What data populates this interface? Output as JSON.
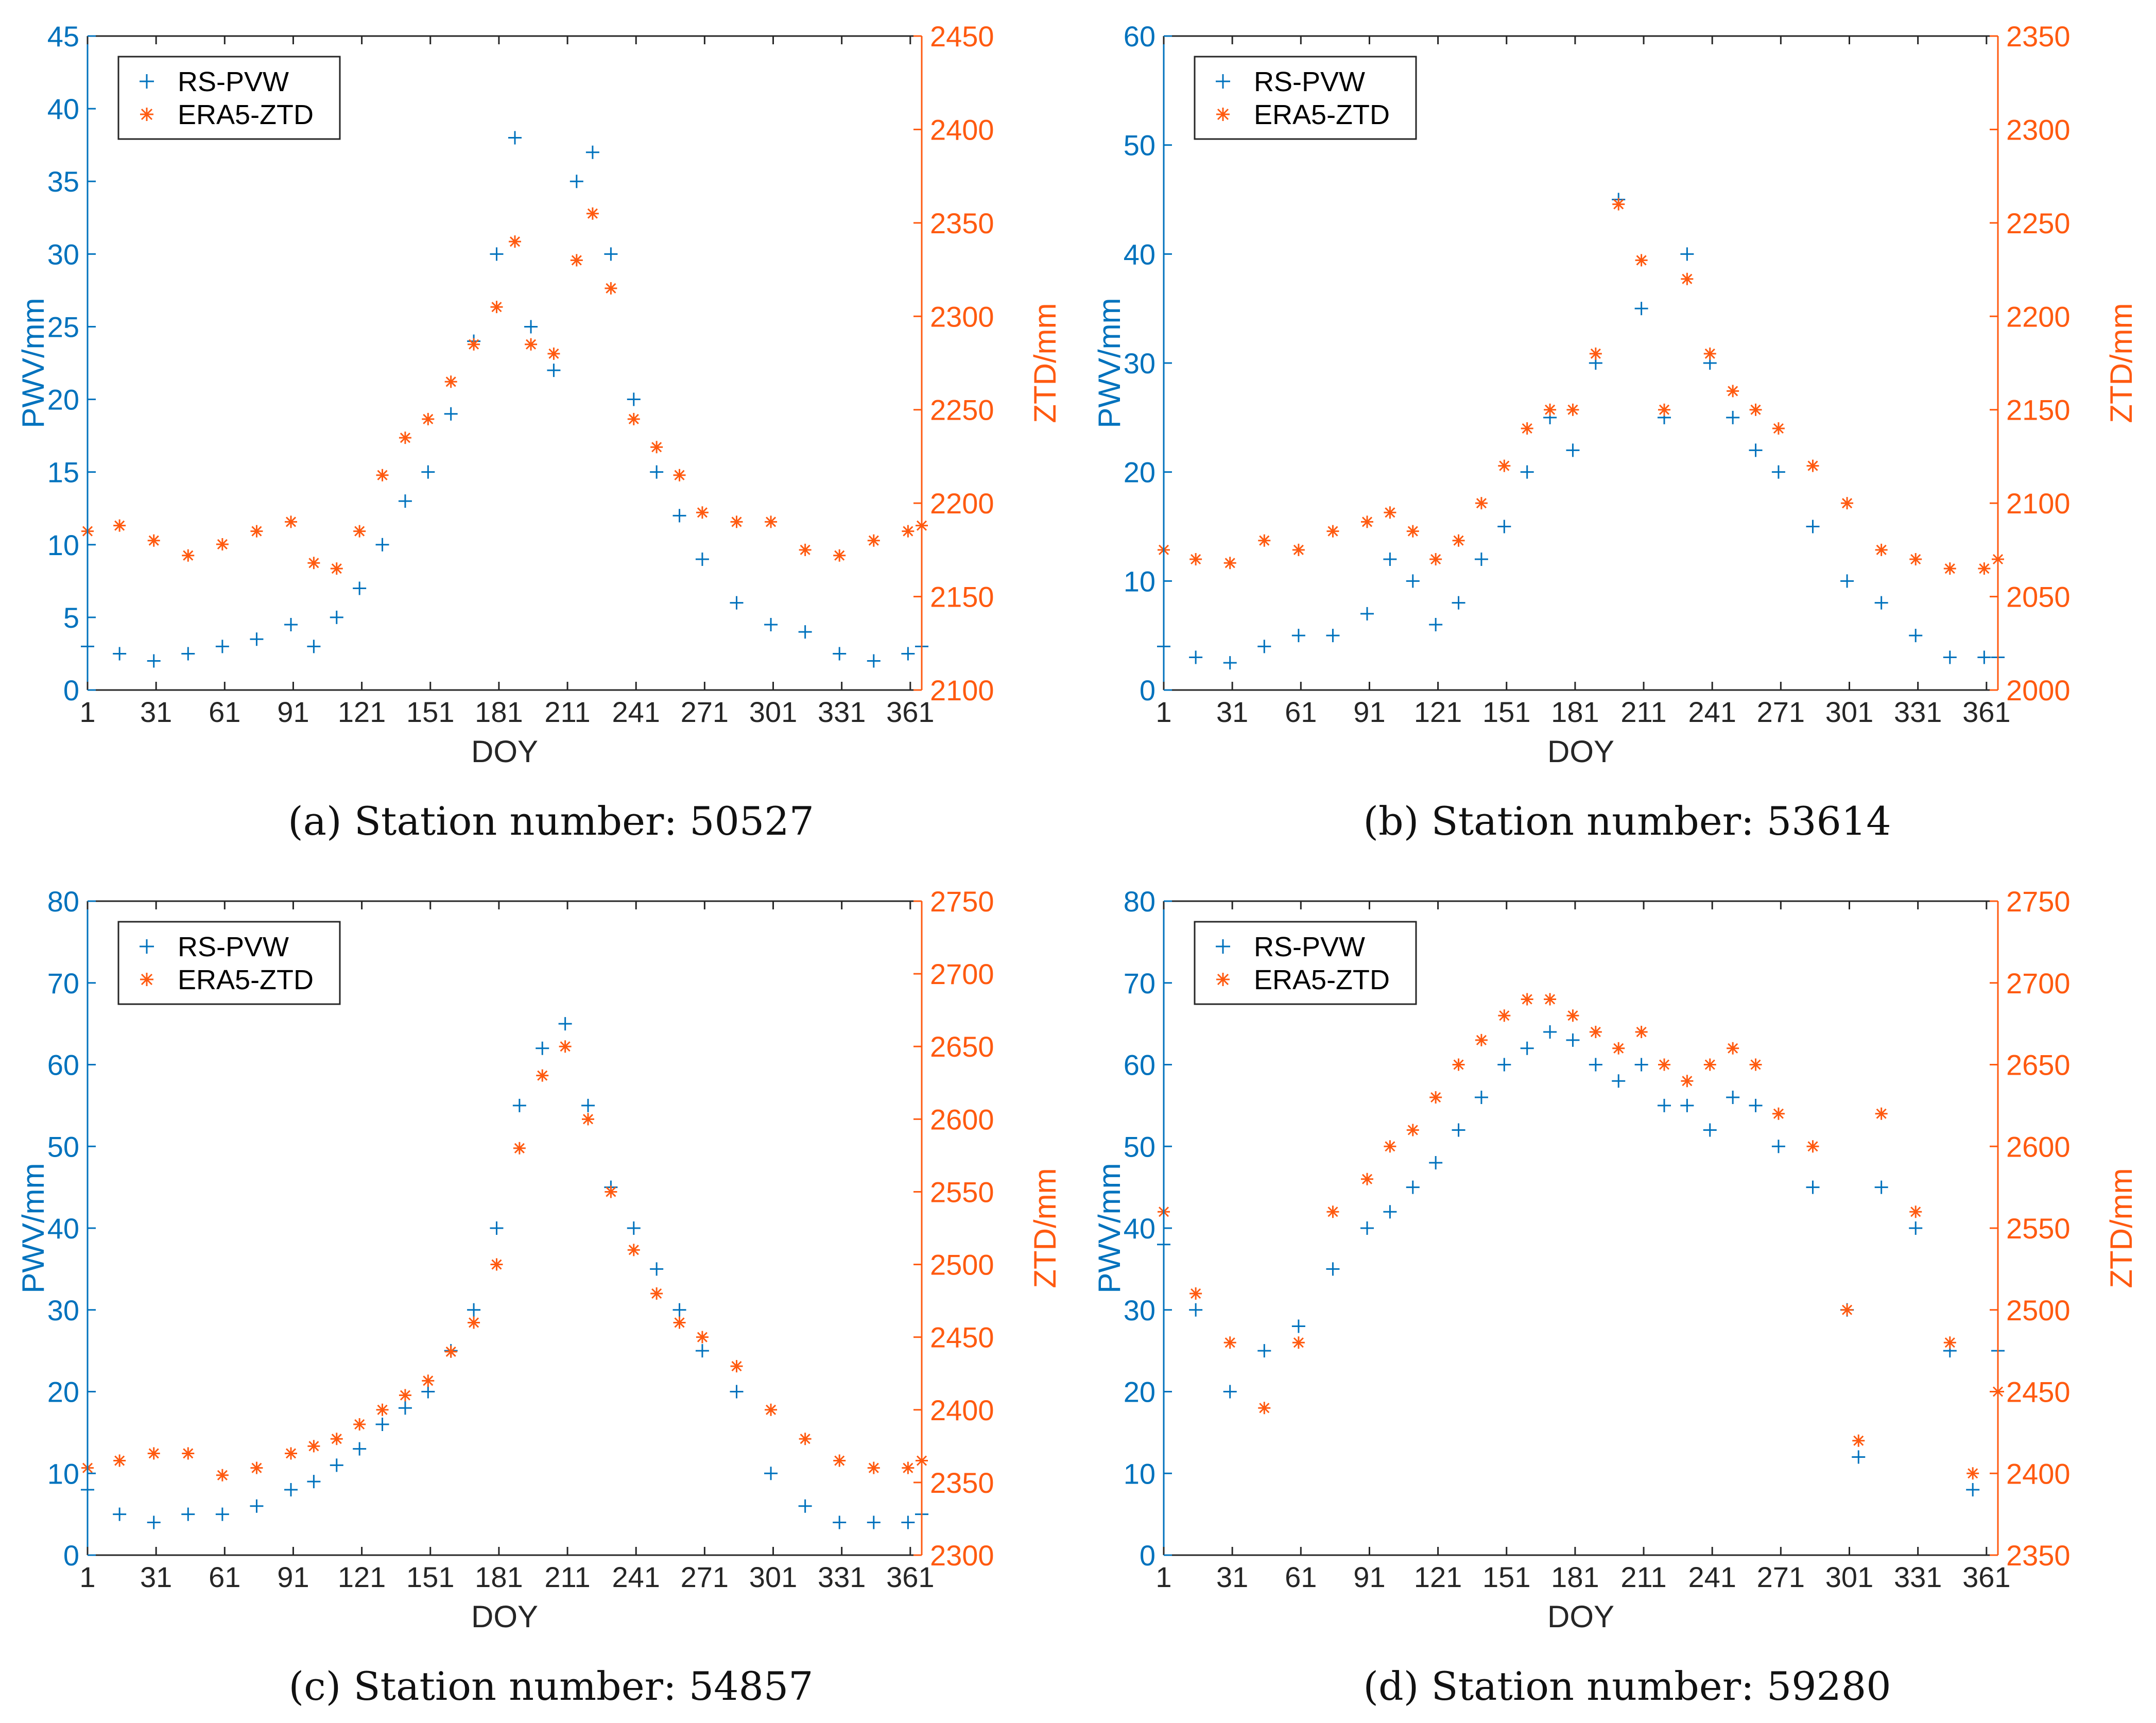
{
  "colors": {
    "pwv": "#0072BD",
    "ztd": "#FF5A10",
    "axis": "#262626"
  },
  "legend": {
    "series1": "RS-PVW",
    "series2": "ERA5-ZTD",
    "placement": "top-left"
  },
  "chart_data": [
    {
      "type": "scatter",
      "caption": "(a) Station number: 50527",
      "xlabel": "DOY",
      "ylabel_left": "PWV/mm",
      "ylabel_right": "ZTD/mm",
      "xlim": [
        1,
        366
      ],
      "xticks": [
        1,
        31,
        61,
        91,
        121,
        151,
        181,
        211,
        241,
        271,
        301,
        331,
        361
      ],
      "ylim_left": [
        0,
        45
      ],
      "yticks_left": [
        0,
        5,
        10,
        15,
        20,
        25,
        30,
        35,
        40,
        45
      ],
      "ylim_right": [
        2100,
        2450
      ],
      "yticks_right": [
        2100,
        2150,
        2200,
        2250,
        2300,
        2350,
        2400,
        2450
      ],
      "series": [
        {
          "name": "RS-PVW",
          "axis": "left",
          "marker": "+",
          "x": [
            1,
            15,
            30,
            45,
            60,
            75,
            90,
            100,
            110,
            120,
            130,
            140,
            150,
            160,
            170,
            180,
            188,
            195,
            205,
            215,
            222,
            230,
            240,
            250,
            260,
            270,
            285,
            300,
            315,
            330,
            345,
            360,
            366
          ],
          "y": [
            3,
            2.5,
            2,
            2.5,
            3,
            3.5,
            4.5,
            3,
            5,
            7,
            10,
            13,
            15,
            19,
            24,
            30,
            38,
            25,
            22,
            35,
            37,
            30,
            20,
            15,
            12,
            9,
            6,
            4.5,
            4,
            2.5,
            2,
            2.5,
            3
          ]
        },
        {
          "name": "ERA5-ZTD",
          "axis": "right",
          "marker": "*",
          "x": [
            1,
            15,
            30,
            45,
            60,
            75,
            90,
            100,
            110,
            120,
            130,
            140,
            150,
            160,
            170,
            180,
            188,
            195,
            205,
            215,
            222,
            230,
            240,
            250,
            260,
            270,
            285,
            300,
            315,
            330,
            345,
            360,
            366
          ],
          "y": [
            2185,
            2188,
            2180,
            2172,
            2178,
            2185,
            2190,
            2168,
            2165,
            2185,
            2215,
            2235,
            2245,
            2265,
            2285,
            2305,
            2340,
            2285,
            2280,
            2330,
            2355,
            2315,
            2245,
            2230,
            2215,
            2195,
            2190,
            2190,
            2175,
            2172,
            2180,
            2185,
            2188
          ]
        }
      ]
    },
    {
      "type": "scatter",
      "caption": "(b) Station number: 53614",
      "xlabel": "DOY",
      "ylabel_left": "PWV/mm",
      "ylabel_right": "ZTD/mm",
      "xlim": [
        1,
        366
      ],
      "xticks": [
        1,
        31,
        61,
        91,
        121,
        151,
        181,
        211,
        241,
        271,
        301,
        331,
        361
      ],
      "ylim_left": [
        0,
        60
      ],
      "yticks_left": [
        0,
        10,
        20,
        30,
        40,
        50,
        60
      ],
      "ylim_right": [
        2000,
        2350
      ],
      "yticks_right": [
        2000,
        2050,
        2100,
        2150,
        2200,
        2250,
        2300,
        2350
      ],
      "series": [
        {
          "name": "RS-PVW",
          "axis": "left",
          "marker": "+",
          "x": [
            1,
            15,
            30,
            45,
            60,
            75,
            90,
            100,
            110,
            120,
            130,
            140,
            150,
            160,
            170,
            180,
            190,
            200,
            210,
            220,
            230,
            240,
            250,
            260,
            270,
            285,
            300,
            315,
            330,
            345,
            360,
            366
          ],
          "y": [
            4,
            3,
            2.5,
            4,
            5,
            5,
            7,
            12,
            10,
            6,
            8,
            12,
            15,
            20,
            25,
            22,
            30,
            45,
            35,
            25,
            40,
            30,
            25,
            22,
            20,
            15,
            10,
            8,
            5,
            3,
            3,
            3
          ]
        },
        {
          "name": "ERA5-ZTD",
          "axis": "right",
          "marker": "*",
          "x": [
            1,
            15,
            30,
            45,
            60,
            75,
            90,
            100,
            110,
            120,
            130,
            140,
            150,
            160,
            170,
            180,
            190,
            200,
            210,
            220,
            230,
            240,
            250,
            260,
            270,
            285,
            300,
            315,
            330,
            345,
            360,
            366
          ],
          "y": [
            2075,
            2070,
            2068,
            2080,
            2075,
            2085,
            2090,
            2095,
            2085,
            2070,
            2080,
            2100,
            2120,
            2140,
            2150,
            2150,
            2180,
            2260,
            2230,
            2150,
            2220,
            2180,
            2160,
            2150,
            2140,
            2120,
            2100,
            2075,
            2070,
            2065,
            2065,
            2070
          ]
        }
      ]
    },
    {
      "type": "scatter",
      "caption": "(c) Station number: 54857",
      "xlabel": "DOY",
      "ylabel_left": "PWV/mm",
      "ylabel_right": "ZTD/mm",
      "xlim": [
        1,
        366
      ],
      "xticks": [
        1,
        31,
        61,
        91,
        121,
        151,
        181,
        211,
        241,
        271,
        301,
        331,
        361
      ],
      "ylim_left": [
        0,
        80
      ],
      "yticks_left": [
        0,
        10,
        20,
        30,
        40,
        50,
        60,
        70,
        80
      ],
      "ylim_right": [
        2300,
        2750
      ],
      "yticks_right": [
        2300,
        2350,
        2400,
        2450,
        2500,
        2550,
        2600,
        2650,
        2700,
        2750
      ],
      "series": [
        {
          "name": "RS-PVW",
          "axis": "left",
          "marker": "+",
          "x": [
            1,
            15,
            30,
            45,
            60,
            75,
            90,
            100,
            110,
            120,
            130,
            140,
            150,
            160,
            170,
            180,
            190,
            200,
            210,
            220,
            230,
            240,
            250,
            260,
            270,
            285,
            300,
            315,
            330,
            345,
            360,
            366
          ],
          "y": [
            8,
            5,
            4,
            5,
            5,
            6,
            8,
            9,
            11,
            13,
            16,
            18,
            20,
            25,
            30,
            40,
            55,
            62,
            65,
            55,
            45,
            40,
            35,
            30,
            25,
            20,
            10,
            6,
            4,
            4,
            4,
            5
          ]
        },
        {
          "name": "ERA5-ZTD",
          "axis": "right",
          "marker": "*",
          "x": [
            1,
            15,
            30,
            45,
            60,
            75,
            90,
            100,
            110,
            120,
            130,
            140,
            150,
            160,
            170,
            180,
            190,
            200,
            210,
            220,
            230,
            240,
            250,
            260,
            270,
            285,
            300,
            315,
            330,
            345,
            360,
            366
          ],
          "y": [
            2360,
            2365,
            2370,
            2370,
            2355,
            2360,
            2370,
            2375,
            2380,
            2390,
            2400,
            2410,
            2420,
            2440,
            2460,
            2500,
            2580,
            2630,
            2650,
            2600,
            2550,
            2510,
            2480,
            2460,
            2450,
            2430,
            2400,
            2380,
            2365,
            2360,
            2360,
            2365
          ]
        }
      ]
    },
    {
      "type": "scatter",
      "caption": "(d) Station number: 59280",
      "xlabel": "DOY",
      "ylabel_left": "PWV/mm",
      "ylabel_right": "ZTD/mm",
      "xlim": [
        1,
        366
      ],
      "xticks": [
        1,
        31,
        61,
        91,
        121,
        151,
        181,
        211,
        241,
        271,
        301,
        331,
        361
      ],
      "ylim_left": [
        0,
        80
      ],
      "yticks_left": [
        0,
        10,
        20,
        30,
        40,
        50,
        60,
        70,
        80
      ],
      "ylim_right": [
        2350,
        2750
      ],
      "yticks_right": [
        2350,
        2400,
        2450,
        2500,
        2550,
        2600,
        2650,
        2700,
        2750
      ],
      "series": [
        {
          "name": "RS-PVW",
          "axis": "left",
          "marker": "+",
          "x": [
            1,
            15,
            30,
            45,
            60,
            75,
            90,
            100,
            110,
            120,
            130,
            140,
            150,
            160,
            170,
            180,
            190,
            200,
            210,
            220,
            230,
            240,
            250,
            260,
            270,
            285,
            300,
            305,
            315,
            330,
            345,
            355,
            366
          ],
          "y": [
            38,
            30,
            20,
            25,
            28,
            35,
            40,
            42,
            45,
            48,
            52,
            56,
            60,
            62,
            64,
            63,
            60,
            58,
            60,
            55,
            55,
            52,
            56,
            55,
            50,
            45,
            30,
            12,
            45,
            40,
            25,
            8,
            25
          ]
        },
        {
          "name": "ERA5-ZTD",
          "axis": "right",
          "marker": "*",
          "x": [
            1,
            15,
            30,
            45,
            60,
            75,
            90,
            100,
            110,
            120,
            130,
            140,
            150,
            160,
            170,
            180,
            190,
            200,
            210,
            220,
            230,
            240,
            250,
            260,
            270,
            285,
            300,
            305,
            315,
            330,
            345,
            355,
            366
          ],
          "y": [
            2560,
            2510,
            2480,
            2440,
            2480,
            2560,
            2580,
            2600,
            2610,
            2630,
            2650,
            2665,
            2680,
            2690,
            2690,
            2680,
            2670,
            2660,
            2670,
            2650,
            2640,
            2650,
            2660,
            2650,
            2620,
            2600,
            2500,
            2420,
            2620,
            2560,
            2480,
            2400,
            2450
          ]
        }
      ]
    }
  ]
}
